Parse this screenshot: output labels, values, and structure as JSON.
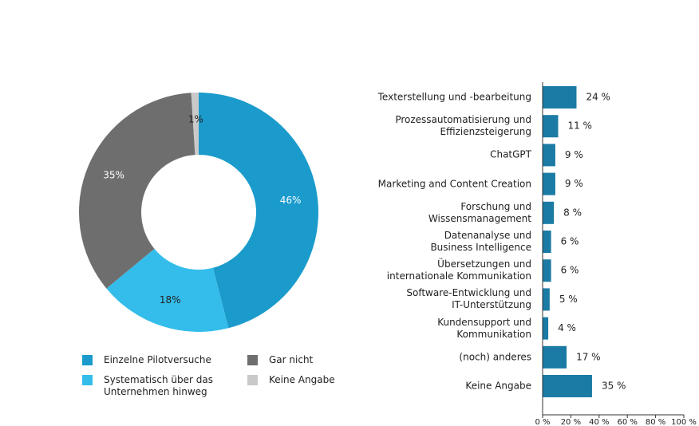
{
  "chart_data": [
    {
      "type": "pie",
      "categories": [
        "Einzelne Pilotversuche",
        "Systematisch über das\nUnternehmen hinweg",
        "Gar nicht",
        "Keine Angabe"
      ],
      "values": [
        46,
        18,
        35,
        1
      ],
      "value_labels": [
        "46%",
        "18%",
        "35%",
        "1%"
      ],
      "colors": [
        "#1a9bcb",
        "#34bdea",
        "#6e6e6e",
        "#c9c9c9"
      ]
    },
    {
      "type": "hbar",
      "categories": [
        "Texterstellung und -bearbeitung",
        "Prozessautomatisierung und\nEffizienzsteigerung",
        "ChatGPT",
        "Marketing and Content Creation",
        "Forschung und\nWissensmanagement",
        "Datenanalyse und\nBusiness Intelligence",
        "Übersetzungen und\ninternationale Kommunikation",
        "Software-Entwicklung und\nIT-Unterstützung",
        "Kundensupport und\nKommunikation",
        "(noch) anderes",
        "Keine Angabe"
      ],
      "values": [
        24,
        11,
        9,
        9,
        8,
        6,
        6,
        5,
        4,
        17,
        35
      ],
      "value_labels": [
        "24 %",
        "11 %",
        "9 %",
        "9 %",
        "8 %",
        "6 %",
        "6 %",
        "5 %",
        "4 %",
        "17 %",
        "35 %"
      ],
      "color": "#1b7ba4",
      "xlim": [
        0,
        100
      ],
      "xticks": [
        {
          "value": 0,
          "label": "0 %"
        },
        {
          "value": 20,
          "label": "20 %"
        },
        {
          "value": 40,
          "label": "40 %"
        },
        {
          "value": 60,
          "label": "60 %"
        },
        {
          "value": 80,
          "label": "80 %"
        },
        {
          "value": 100,
          "label": "100 %"
        }
      ]
    }
  ]
}
